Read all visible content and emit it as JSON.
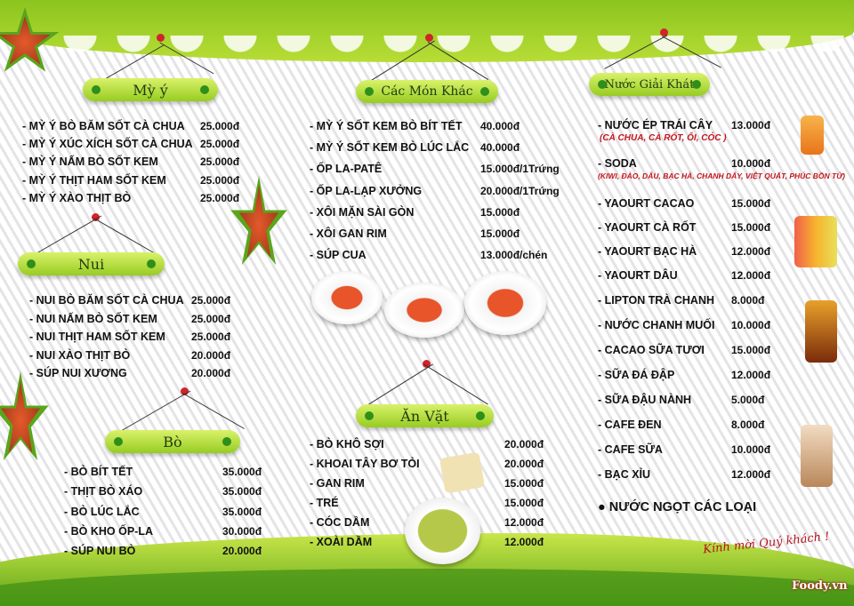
{
  "my_y": {
    "title": "Mỳ ý",
    "items": [
      {
        "name": "- MỲ Ý BÒ BĂM SỐT CÀ CHUA",
        "price": "25.000đ"
      },
      {
        "name": "- MỲ Ý XÚC XÍCH SỐT CÀ CHUA",
        "price": "25.000đ"
      },
      {
        "name": "- MỲ Ý NẤM BÒ SỐT KEM",
        "price": "25.000đ"
      },
      {
        "name": "- MỲ Ý THỊT HAM SỐT KEM",
        "price": "25.000đ"
      },
      {
        "name": "- MỲ Ý XÀO THỊT BÒ",
        "price": "25.000đ"
      }
    ]
  },
  "nui": {
    "title": "Nui",
    "items": [
      {
        "name": "- NUI BÒ BĂM SỐT CÀ CHUA",
        "price": "25.000đ"
      },
      {
        "name": "- NUI NẤM BÒ SỐT KEM",
        "price": "25.000đ"
      },
      {
        "name": "- NUI THỊT HAM SỐT KEM",
        "price": "25.000đ"
      },
      {
        "name": "- NUI XÀO THỊT BÒ",
        "price": "20.000đ"
      },
      {
        "name": "- SÚP NUI XƯƠNG",
        "price": "20.000đ"
      }
    ]
  },
  "bo": {
    "title": "Bò",
    "items": [
      {
        "name": "- BÒ BÍT TẾT",
        "price": "35.000đ"
      },
      {
        "name": "- THỊT BÒ XÁO",
        "price": "35.000đ"
      },
      {
        "name": "- BÒ LÚC LẮC",
        "price": "35.000đ"
      },
      {
        "name": "- BÒ KHO ỐP-LA",
        "price": "30.000đ"
      },
      {
        "name": "- SÚP NUI BÒ",
        "price": "20.000đ"
      }
    ]
  },
  "mon_khac": {
    "title": "Các Món Khác",
    "items": [
      {
        "name": "- MỲ Ý SỐT KEM BÒ BÍT TẾT",
        "price": "40.000đ"
      },
      {
        "name": "- MỲ Ý SỐT KEM BÒ LÚC LẮC",
        "price": "40.000đ"
      },
      {
        "name": "- ỐP LA-PATÊ",
        "price": "15.000đ/1Trứng"
      },
      {
        "name": "- ỐP LA-LẠP XƯỞNG",
        "price": "20.000đ/1Trứng"
      },
      {
        "name": "- XÔI MẶN SÀI GÒN",
        "price": "15.000đ"
      },
      {
        "name": "- XÔI GAN RIM",
        "price": "15.000đ"
      },
      {
        "name": "- SÚP CUA",
        "price": "13.000đ/chén"
      }
    ]
  },
  "an_vat": {
    "title": "Ăn Vặt",
    "items": [
      {
        "name": "- BÒ KHÔ SỢI",
        "price": "20.000đ"
      },
      {
        "name": "- KHOAI TÂY BƠ TỎI",
        "price": "20.000đ"
      },
      {
        "name": "- GAN RIM",
        "price": "15.000đ"
      },
      {
        "name": "- TRÉ",
        "price": "15.000đ"
      },
      {
        "name": "- CÓC DẦM",
        "price": "12.000đ"
      },
      {
        "name": "- XOÀI DẦM",
        "price": "12.000đ"
      }
    ]
  },
  "nuoc": {
    "title": "Nước Giải Khát",
    "items": [
      {
        "name": "- NƯỚC ÉP TRÁI CÂY",
        "price": "13.000đ",
        "note": "(CÀ CHUA, CÀ RỐT,  ỔI, CÓC )"
      },
      {
        "name": "- SODA",
        "price": "10.000đ",
        "note": "(KIWI, ĐÀO, DÂU, BẠC HÀ, CHANH DÂY, VIỆT QUẤT, PHÚC BỒN TỬ)"
      },
      {
        "name": "- YAOURT CACAO",
        "price": "15.000đ"
      },
      {
        "name": "- YAOURT CÀ RỐT",
        "price": "15.000đ"
      },
      {
        "name": "- YAOURT BẠC HÀ",
        "price": "12.000đ"
      },
      {
        "name": "- YAOURT DÂU",
        "price": "12.000đ"
      },
      {
        "name": "- LIPTON TRÀ CHANH",
        "price": "8.000đ"
      },
      {
        "name": "- NƯỚC CHANH MUỐI",
        "price": "10.000đ"
      },
      {
        "name": "- CACAO SỮA TƯƠI",
        "price": "15.000đ"
      },
      {
        "name": "- SỮA ĐÁ ĐẬP",
        "price": "12.000đ"
      },
      {
        "name": "- SỮA ĐẬU NÀNH",
        "price": "5.000đ"
      },
      {
        "name": "- CAFE ĐEN",
        "price": "8.000đ"
      },
      {
        "name": "- CAFE SỮA",
        "price": "10.000đ"
      },
      {
        "name": "- BẠC XỈU",
        "price": "12.000đ"
      }
    ],
    "soft_drinks": "● NƯỚC NGỌT CÁC LOẠI"
  },
  "footer": {
    "welcome": "Kính mời Quý khách !",
    "logo": "Foody.vn"
  },
  "colors": {
    "accent_green": "#8cc41e",
    "note_red": "#c3161d"
  }
}
